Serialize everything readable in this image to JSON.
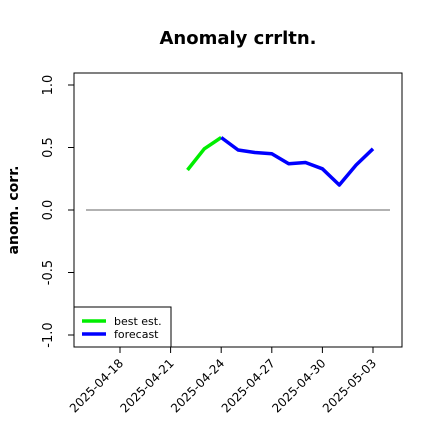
{
  "chart_data": {
    "type": "line",
    "title": "Anomaly crrltn.",
    "xlabel": "",
    "ylabel": "anom. corr.",
    "ylim": [
      -1.0,
      1.0
    ],
    "yticks": [
      "-1.0",
      "-0.5",
      "0.0",
      "0.5",
      "1.0"
    ],
    "xticks": [
      "2025-04-18",
      "2025-04-21",
      "2025-04-24",
      "2025-04-27",
      "2025-04-30",
      "2025-05-03"
    ],
    "highlight_xtick": "2025-04-24",
    "highlight_color": "#228b22",
    "reference_line_y": 0,
    "grid": false,
    "legend_position": "bottom-left",
    "series": [
      {
        "name": "best est.",
        "color": "#00ee00",
        "x": [
          "2025-04-22",
          "2025-04-23",
          "2025-04-24"
        ],
        "y": [
          0.32,
          0.49,
          0.58
        ]
      },
      {
        "name": "forecast",
        "color": "#0000ff",
        "x": [
          "2025-04-24",
          "2025-04-25",
          "2025-04-26",
          "2025-04-27",
          "2025-04-28",
          "2025-04-29",
          "2025-04-30",
          "2025-05-01",
          "2025-05-02",
          "2025-05-03"
        ],
        "y": [
          0.58,
          0.48,
          0.46,
          0.45,
          0.37,
          0.38,
          0.33,
          0.2,
          0.36,
          0.49
        ]
      }
    ]
  }
}
